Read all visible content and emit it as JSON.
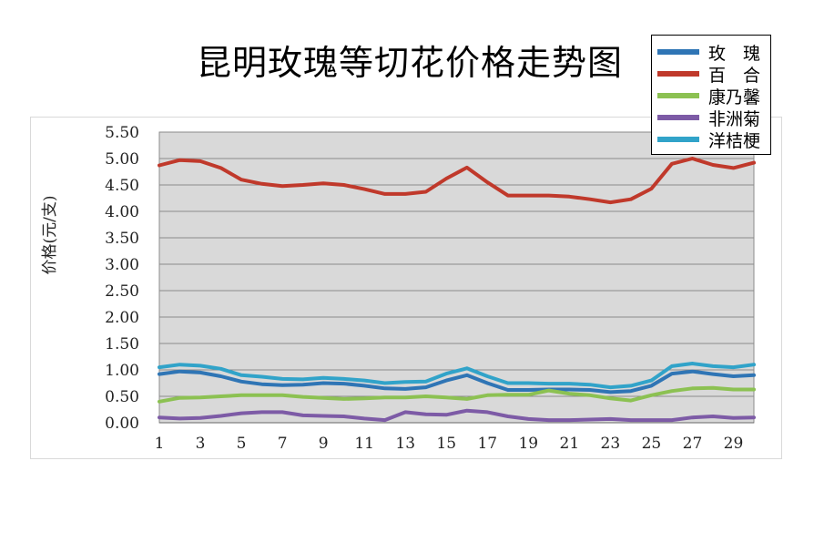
{
  "chart_data": {
    "type": "line",
    "title": "昆明玫瑰等切花价格走势图",
    "xlabel": "",
    "ylabel": "价格(元/支)",
    "xlim": [
      1,
      30
    ],
    "ylim": [
      0,
      5.5
    ],
    "x": [
      1,
      2,
      3,
      4,
      5,
      6,
      7,
      8,
      9,
      10,
      11,
      12,
      13,
      14,
      15,
      16,
      17,
      18,
      19,
      20,
      21,
      22,
      23,
      24,
      25,
      26,
      27,
      28,
      29,
      30
    ],
    "x_tick_labels": [
      "1",
      "3",
      "5",
      "7",
      "9",
      "11",
      "13",
      "15",
      "17",
      "19",
      "21",
      "23",
      "25",
      "27",
      "29"
    ],
    "x_tick_values": [
      1,
      3,
      5,
      7,
      9,
      11,
      13,
      15,
      17,
      19,
      21,
      23,
      25,
      27,
      29
    ],
    "y_tick_labels": [
      "0.00",
      "0.50",
      "1.00",
      "1.50",
      "2.00",
      "2.50",
      "3.00",
      "3.50",
      "4.00",
      "4.50",
      "5.00",
      "5.50"
    ],
    "y_tick_values": [
      0,
      0.5,
      1,
      1.5,
      2,
      2.5,
      3,
      3.5,
      4,
      4.5,
      5,
      5.5
    ],
    "grid": true,
    "legend_position": "top-right",
    "series": [
      {
        "name": "玫　瑰",
        "color": "#2f75b5",
        "values": [
          0.92,
          0.97,
          0.95,
          0.88,
          0.78,
          0.73,
          0.71,
          0.72,
          0.75,
          0.74,
          0.7,
          0.65,
          0.64,
          0.67,
          0.8,
          0.9,
          0.75,
          0.62,
          0.62,
          0.63,
          0.63,
          0.62,
          0.58,
          0.6,
          0.7,
          0.93,
          0.97,
          0.92,
          0.88,
          0.9
        ]
      },
      {
        "name": "百　合",
        "color": "#c0392b",
        "values": [
          4.87,
          4.97,
          4.95,
          4.82,
          4.6,
          4.52,
          4.48,
          4.5,
          4.53,
          4.5,
          4.42,
          4.33,
          4.33,
          4.37,
          4.62,
          4.83,
          4.55,
          4.3,
          4.3,
          4.3,
          4.28,
          4.23,
          4.17,
          4.23,
          4.43,
          4.9,
          5.0,
          4.88,
          4.82,
          4.92
        ]
      },
      {
        "name": "康乃馨",
        "color": "#8cc152",
        "values": [
          0.4,
          0.47,
          0.48,
          0.5,
          0.52,
          0.52,
          0.52,
          0.49,
          0.47,
          0.45,
          0.46,
          0.48,
          0.48,
          0.5,
          0.48,
          0.45,
          0.52,
          0.53,
          0.53,
          0.61,
          0.55,
          0.52,
          0.46,
          0.42,
          0.52,
          0.6,
          0.65,
          0.66,
          0.63,
          0.63
        ]
      },
      {
        "name": "非洲菊",
        "color": "#7d5ba6",
        "values": [
          0.1,
          0.08,
          0.09,
          0.13,
          0.18,
          0.2,
          0.2,
          0.14,
          0.13,
          0.12,
          0.08,
          0.05,
          0.2,
          0.16,
          0.15,
          0.23,
          0.2,
          0.12,
          0.07,
          0.05,
          0.05,
          0.06,
          0.07,
          0.05,
          0.05,
          0.05,
          0.1,
          0.12,
          0.09,
          0.1
        ]
      },
      {
        "name": "洋桔梗",
        "color": "#31a3c9",
        "values": [
          1.05,
          1.1,
          1.08,
          1.02,
          0.9,
          0.87,
          0.83,
          0.82,
          0.85,
          0.83,
          0.8,
          0.75,
          0.77,
          0.78,
          0.93,
          1.03,
          0.88,
          0.75,
          0.75,
          0.74,
          0.74,
          0.72,
          0.67,
          0.7,
          0.8,
          1.07,
          1.12,
          1.07,
          1.05,
          1.1
        ]
      }
    ]
  }
}
